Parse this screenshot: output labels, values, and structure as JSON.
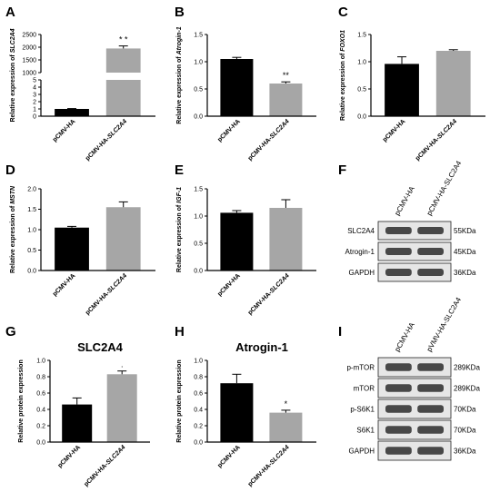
{
  "panel_letters": [
    "A",
    "B",
    "C",
    "D",
    "E",
    "F",
    "G",
    "H",
    "I"
  ],
  "chart_data": [
    {
      "type": "bar",
      "panel": "A",
      "title": "",
      "ylabel": "Relative expression of SLC2A4",
      "ylabel_prefix": "Relative expression of ",
      "ylabel_gene": "SLC2A4",
      "categories": [
        "pCMV-HA",
        "pCMV-HA-SLC2A4"
      ],
      "cat_prefix": [
        "pCMV-HA",
        "pCMV-HA-"
      ],
      "cat_gene": [
        "",
        "SLC2A4"
      ],
      "values": [
        1,
        1950
      ],
      "errors": [
        0.05,
        100
      ],
      "colors": [
        "#000000",
        "#a6a6a6"
      ],
      "broken_axis": true,
      "lower_ylim": [
        0,
        5
      ],
      "lower_ticks": [
        0,
        1,
        2,
        3,
        4,
        5
      ],
      "upper_ylim": [
        1000,
        2500
      ],
      "upper_ticks": [
        1000,
        1500,
        2000,
        2500
      ],
      "annotations": [
        "",
        "* *"
      ]
    },
    {
      "type": "bar",
      "panel": "B",
      "title": "",
      "ylabel": "Relative expression of Atrogin-1",
      "ylabel_prefix": "Relative expression of ",
      "ylabel_gene": "Atrogin-1",
      "categories": [
        "pCMV-HA",
        "pCMV-HA-SLC2A4"
      ],
      "cat_prefix": [
        "pCMV-HA",
        "pCMV-HA-"
      ],
      "cat_gene": [
        "",
        "SLC2A4"
      ],
      "values": [
        1.05,
        0.6
      ],
      "errors": [
        0.03,
        0.03
      ],
      "colors": [
        "#000000",
        "#a6a6a6"
      ],
      "ylim": [
        0,
        1.5
      ],
      "yticks": [
        "0.0",
        "0.5",
        "1.0",
        "1.5"
      ],
      "annotations": [
        "",
        "**"
      ]
    },
    {
      "type": "bar",
      "panel": "C",
      "title": "",
      "ylabel": "Relative expression of FOXO1",
      "ylabel_prefix": "Relative expression of ",
      "ylabel_gene": "FOXO1",
      "categories": [
        "pCMV-HA",
        "pCMV-HA-SLC2A4"
      ],
      "cat_prefix": [
        "pCMV-HA",
        "pCMV-HA-"
      ],
      "cat_gene": [
        "",
        "SLC2A4"
      ],
      "values": [
        0.96,
        1.2
      ],
      "errors": [
        0.13,
        0.02
      ],
      "colors": [
        "#000000",
        "#a6a6a6"
      ],
      "ylim": [
        0,
        1.5
      ],
      "yticks": [
        "0.0",
        "0.5",
        "1.0",
        "1.5"
      ],
      "annotations": [
        "",
        ""
      ]
    },
    {
      "type": "bar",
      "panel": "D",
      "title": "",
      "ylabel": "Relative expression of MSTN",
      "ylabel_prefix": "Relative expression of ",
      "ylabel_gene": "MSTN",
      "categories": [
        "pCMV-HA",
        "pCMV-HA-SLC2A4"
      ],
      "cat_prefix": [
        "pCMV-HA",
        "pCMV-HA-"
      ],
      "cat_gene": [
        "",
        "SLC2A4"
      ],
      "values": [
        1.05,
        1.55
      ],
      "errors": [
        0.03,
        0.13
      ],
      "colors": [
        "#000000",
        "#a6a6a6"
      ],
      "ylim": [
        0,
        2.0
      ],
      "yticks": [
        "0.0",
        "0.5",
        "1.0",
        "1.5",
        "2.0"
      ],
      "annotations": [
        "",
        ""
      ]
    },
    {
      "type": "bar",
      "panel": "E",
      "title": "",
      "ylabel": "Relative expression of IGF-1",
      "ylabel_prefix": "Relative expression of ",
      "ylabel_gene": "IGF-1",
      "categories": [
        "pCMV-HA",
        "pCMV-HA-SLC2A4"
      ],
      "cat_prefix": [
        "pCMV-HA",
        "pCMV-HA-"
      ],
      "cat_gene": [
        "",
        "SLC2A4"
      ],
      "values": [
        1.06,
        1.15
      ],
      "errors": [
        0.04,
        0.15
      ],
      "colors": [
        "#000000",
        "#a6a6a6"
      ],
      "ylim": [
        0,
        1.5
      ],
      "yticks": [
        "0.0",
        "0.5",
        "1.0",
        "1.5"
      ],
      "annotations": [
        "",
        ""
      ]
    },
    {
      "type": "bar",
      "panel": "G",
      "title": "SLC2A4",
      "ylabel": "Relative protein expression",
      "ylabel_prefix": "Relative protein expression",
      "ylabel_gene": "",
      "categories": [
        "pCMV-HA",
        "pCMV-HA-SLC2A4"
      ],
      "cat_prefix": [
        "pCMV-HA",
        "pCMV-HA-"
      ],
      "cat_gene": [
        "",
        "SLC2A4"
      ],
      "values": [
        0.46,
        0.83
      ],
      "errors": [
        0.08,
        0.04
      ],
      "colors": [
        "#000000",
        "#a6a6a6"
      ],
      "ylim": [
        0,
        1.0
      ],
      "yticks": [
        "0.0",
        "0.2",
        "0.4",
        "0.6",
        "0.8",
        "1.0"
      ],
      "annotations": [
        "",
        "."
      ]
    },
    {
      "type": "bar",
      "panel": "H",
      "title": "Atrogin-1",
      "ylabel": "Relative protein expression",
      "ylabel_prefix": "Relative protein expression",
      "ylabel_gene": "",
      "categories": [
        "pCMV-HA",
        "pCMV-HA-SLC2A4"
      ],
      "cat_prefix": [
        "pCMV-HA",
        "pCMV-HA-"
      ],
      "cat_gene": [
        "",
        "SLC2A4"
      ],
      "values": [
        0.72,
        0.36
      ],
      "errors": [
        0.11,
        0.03
      ],
      "colors": [
        "#000000",
        "#a6a6a6"
      ],
      "ylim": [
        0,
        1.0
      ],
      "yticks": [
        "0.0",
        "0.2",
        "0.4",
        "0.6",
        "0.8",
        "1.0"
      ],
      "annotations": [
        "",
        "*"
      ]
    }
  ],
  "blots": [
    {
      "panel": "F",
      "lanes": [
        "pCMV-HA",
        "pCMV-HA-SLC2A4"
      ],
      "rows": [
        {
          "protein": "SLC2A4",
          "size": "55KDa"
        },
        {
          "protein": "Atrogin-1",
          "size": "45KDa"
        },
        {
          "protein": "GAPDH",
          "size": "36KDa"
        }
      ]
    },
    {
      "panel": "I",
      "lanes": [
        "pCMV-HA",
        "pVMV-HA-SLC2A4"
      ],
      "rows": [
        {
          "protein": "p-mTOR",
          "size": "289KDa"
        },
        {
          "protein": "mTOR",
          "size": "289KDa"
        },
        {
          "protein": "p-S6K1",
          "size": "70KDa"
        },
        {
          "protein": "S6K1",
          "size": "70KDa"
        },
        {
          "protein": "GAPDH",
          "size": "36KDa"
        }
      ]
    }
  ]
}
